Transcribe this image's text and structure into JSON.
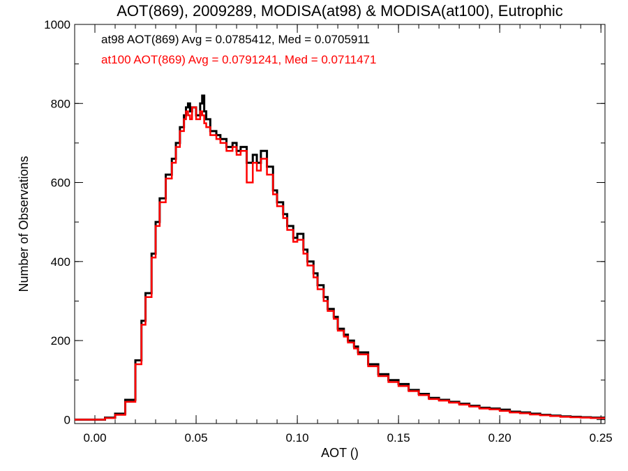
{
  "chart_data": {
    "type": "line",
    "step": true,
    "title": "AOT(869), 2009289, MODISA(at98) & MODISA(at100), Eutrophic",
    "xlabel": "AOT ()",
    "ylabel": "Number of Observations",
    "xlim": [
      -0.01,
      0.252
    ],
    "ylim": [
      -10,
      1000
    ],
    "xticks": [
      0.0,
      0.05,
      0.1,
      0.15,
      0.2,
      0.25
    ],
    "xtick_labels": [
      "0.00",
      "0.05",
      "0.10",
      "0.15",
      "0.20",
      "0.25"
    ],
    "yticks": [
      0,
      200,
      400,
      600,
      800,
      1000
    ],
    "ytick_labels": [
      "0",
      "200",
      "400",
      "600",
      "800",
      "1000"
    ],
    "grid": false,
    "annotations": [
      {
        "text": "at98 AOT(869) Avg = 0.0785412, Med = 0.0705911",
        "color": "#000000"
      },
      {
        "text": "at100 AOT(869) Avg = 0.0791241, Med = 0.0711471",
        "color": "#ff0000"
      }
    ],
    "series": [
      {
        "color": "#000000",
        "x": [
          -0.01,
          0.0,
          0.005,
          0.01,
          0.015,
          0.02,
          0.023,
          0.025,
          0.028,
          0.03,
          0.032,
          0.035,
          0.038,
          0.04,
          0.042,
          0.044,
          0.045,
          0.046,
          0.047,
          0.048,
          0.05,
          0.052,
          0.053,
          0.054,
          0.055,
          0.057,
          0.06,
          0.062,
          0.065,
          0.068,
          0.07,
          0.072,
          0.075,
          0.078,
          0.08,
          0.082,
          0.085,
          0.088,
          0.09,
          0.093,
          0.095,
          0.098,
          0.1,
          0.103,
          0.105,
          0.108,
          0.11,
          0.113,
          0.115,
          0.118,
          0.12,
          0.123,
          0.125,
          0.128,
          0.13,
          0.135,
          0.14,
          0.145,
          0.15,
          0.155,
          0.16,
          0.165,
          0.17,
          0.175,
          0.18,
          0.185,
          0.19,
          0.195,
          0.2,
          0.205,
          0.21,
          0.215,
          0.22,
          0.225,
          0.23,
          0.235,
          0.24,
          0.245,
          0.25
        ],
        "y": [
          0,
          0,
          5,
          15,
          50,
          150,
          250,
          320,
          420,
          500,
          560,
          620,
          660,
          700,
          740,
          770,
          790,
          800,
          780,
          790,
          770,
          800,
          820,
          780,
          760,
          730,
          720,
          710,
          690,
          700,
          680,
          690,
          650,
          670,
          650,
          680,
          640,
          580,
          550,
          520,
          490,
          460,
          470,
          430,
          400,
          370,
          340,
          310,
          280,
          260,
          230,
          215,
          200,
          185,
          170,
          140,
          115,
          100,
          90,
          75,
          65,
          55,
          50,
          45,
          40,
          35,
          30,
          28,
          25,
          20,
          18,
          15,
          12,
          10,
          8,
          7,
          6,
          5,
          5
        ]
      },
      {
        "color": "#ff0000",
        "x": [
          -0.01,
          0.0,
          0.005,
          0.01,
          0.015,
          0.02,
          0.023,
          0.025,
          0.028,
          0.03,
          0.032,
          0.035,
          0.038,
          0.04,
          0.042,
          0.044,
          0.045,
          0.046,
          0.047,
          0.048,
          0.05,
          0.052,
          0.053,
          0.054,
          0.055,
          0.057,
          0.06,
          0.062,
          0.065,
          0.068,
          0.07,
          0.072,
          0.075,
          0.078,
          0.08,
          0.082,
          0.085,
          0.088,
          0.09,
          0.093,
          0.095,
          0.098,
          0.1,
          0.103,
          0.105,
          0.108,
          0.11,
          0.113,
          0.115,
          0.118,
          0.12,
          0.123,
          0.125,
          0.128,
          0.13,
          0.135,
          0.14,
          0.145,
          0.15,
          0.155,
          0.16,
          0.165,
          0.17,
          0.175,
          0.18,
          0.185,
          0.19,
          0.195,
          0.2,
          0.205,
          0.21,
          0.215,
          0.22,
          0.225,
          0.23,
          0.235,
          0.24,
          0.245,
          0.25
        ],
        "y": [
          0,
          0,
          4,
          12,
          45,
          140,
          240,
          310,
          410,
          490,
          550,
          610,
          650,
          690,
          730,
          760,
          780,
          770,
          760,
          790,
          760,
          780,
          770,
          750,
          740,
          720,
          710,
          700,
          680,
          690,
          670,
          680,
          600,
          650,
          630,
          660,
          620,
          570,
          540,
          510,
          480,
          450,
          455,
          420,
          390,
          360,
          330,
          300,
          275,
          255,
          225,
          210,
          195,
          180,
          165,
          135,
          110,
          95,
          85,
          72,
          62,
          52,
          48,
          43,
          38,
          33,
          28,
          26,
          22,
          18,
          16,
          13,
          11,
          9,
          7,
          6,
          5,
          4,
          4
        ]
      }
    ]
  }
}
